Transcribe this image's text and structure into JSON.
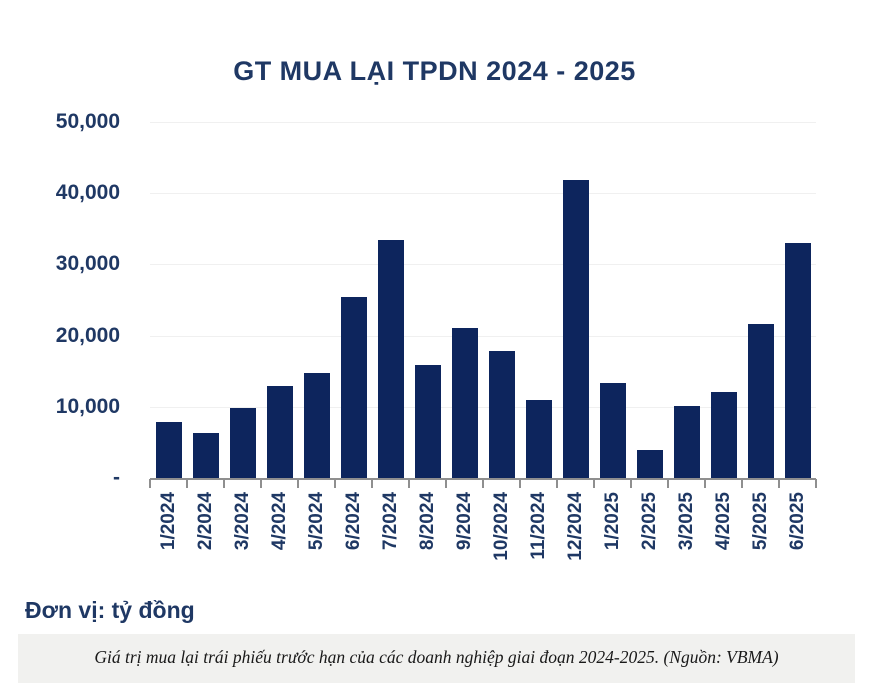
{
  "chart_data": {
    "type": "bar",
    "title": "GT MUA LẠI TPDN 2024 - 2025",
    "unit_label": "Đơn vị: tỷ đồng",
    "categories": [
      "1/2024",
      "2/2024",
      "3/2024",
      "4/2024",
      "5/2024",
      "6/2024",
      "7/2024",
      "8/2024",
      "9/2024",
      "10/2024",
      "11/2024",
      "12/2024",
      "1/2025",
      "2/2025",
      "3/2025",
      "4/2025",
      "5/2025",
      "6/2025"
    ],
    "values": [
      7900,
      6300,
      9900,
      12900,
      14800,
      25400,
      33400,
      15900,
      21100,
      17900,
      11000,
      41900,
      13400,
      3900,
      10100,
      12100,
      21700,
      33000
    ],
    "xlabel": "",
    "ylabel": "",
    "ylim": [
      0,
      50000
    ],
    "grid": true,
    "legend": "none",
    "y_ticks": [
      {
        "value": 50000,
        "label": "50,000"
      },
      {
        "value": 40000,
        "label": "40,000"
      },
      {
        "value": 30000,
        "label": "30,000"
      },
      {
        "value": 20000,
        "label": "20,000"
      },
      {
        "value": 10000,
        "label": "10,000"
      },
      {
        "value": 0,
        "label": "-"
      }
    ],
    "colors": {
      "bar": "#0d255d",
      "text_navy": "#1f3864",
      "axis_gray": "#8f8f8f",
      "gridline": "#f0f0f0",
      "caption_background": "#f1f1ef"
    }
  },
  "caption": {
    "text": "Giá trị mua lại trái phiếu trước hạn của các doanh nghiệp giai đoạn 2024-2025. (Nguồn: VBMA)"
  }
}
